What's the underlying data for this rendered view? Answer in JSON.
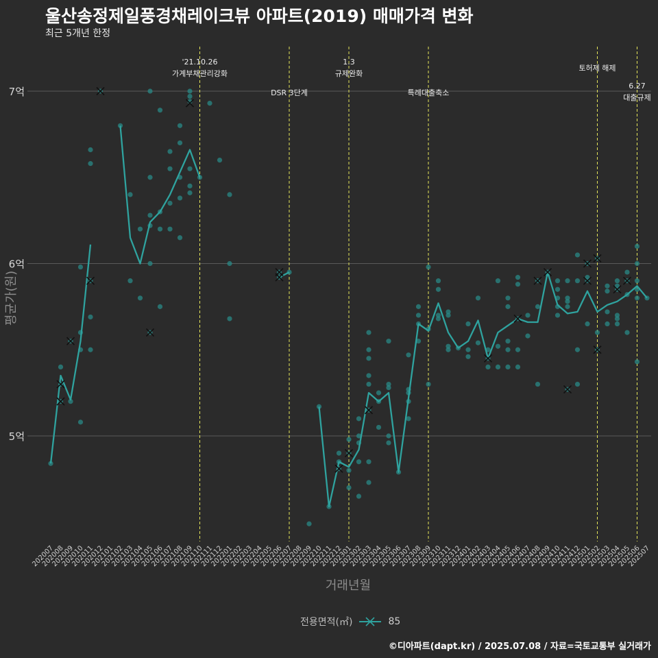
{
  "title": "울산송정제일풍경채레이크뷰 아파트(2019) 매매가격 변화",
  "subtitle": "최근 5개년 한정",
  "footer": "©디아파트(dapt.kr) / 2025.07.08 / 자료=국토교통부 실거래가",
  "legend": {
    "title": "전용면적(㎡)",
    "label": "85"
  },
  "colors": {
    "background": "#2b2b2b",
    "line": "#2fa39f",
    "point": "#2a8a87",
    "vline": "#e6e65a",
    "grid": "#5a5a5a"
  },
  "chart_data": {
    "type": "line",
    "xlabel": "거래년월",
    "ylabel": "평균가(원)",
    "ylim": [
      4.37,
      7.3
    ],
    "yticks": [
      5,
      6,
      7
    ],
    "ytick_labels": [
      "5억",
      "6억",
      "7억"
    ],
    "categories": [
      "202007",
      "202008",
      "202009",
      "202010",
      "202011",
      "202012",
      "202101",
      "202102",
      "202103",
      "202104",
      "202105",
      "202106",
      "202107",
      "202108",
      "202109",
      "202110",
      "202111",
      "202112",
      "202201",
      "202202",
      "202203",
      "202204",
      "202205",
      "202206",
      "202207",
      "202208",
      "202209",
      "202210",
      "202211",
      "202212",
      "202301",
      "202302",
      "202303",
      "202304",
      "202305",
      "202306",
      "202307",
      "202308",
      "202309",
      "202310",
      "202311",
      "202312",
      "202401",
      "202402",
      "202403",
      "202404",
      "202405",
      "202406",
      "202407",
      "202408",
      "202409",
      "202410",
      "202411",
      "202412",
      "202501",
      "202502",
      "202503",
      "202504",
      "202505",
      "202506",
      "202507"
    ],
    "series": [
      {
        "name": "85",
        "line_segments": [
          [
            [
              0,
              4.84
            ],
            [
              1,
              5.35
            ],
            [
              2,
              5.21
            ],
            [
              3,
              5.55
            ],
            [
              4,
              6.11
            ]
          ],
          [
            [
              7,
              6.8
            ],
            [
              8,
              6.15
            ],
            [
              9,
              6.0
            ],
            [
              10,
              6.24
            ],
            [
              11,
              6.3
            ],
            [
              12,
              6.4
            ],
            [
              13,
              6.53
            ],
            [
              14,
              6.66
            ],
            [
              15,
              6.5
            ]
          ],
          [
            [
              23,
              5.92
            ],
            [
              24,
              5.95
            ]
          ],
          [
            [
              27,
              5.17
            ],
            [
              28,
              4.59
            ],
            [
              29,
              4.85
            ],
            [
              30,
              4.82
            ],
            [
              31,
              4.92
            ],
            [
              32,
              5.25
            ],
            [
              33,
              5.2
            ],
            [
              34,
              5.25
            ],
            [
              35,
              4.79
            ],
            [
              36,
              5.22
            ],
            [
              37,
              5.65
            ],
            [
              38,
              5.61
            ],
            [
              39,
              5.77
            ],
            [
              40,
              5.6
            ],
            [
              41,
              5.51
            ],
            [
              42,
              5.55
            ],
            [
              43,
              5.67
            ],
            [
              44,
              5.45
            ],
            [
              45,
              5.6
            ],
            [
              46,
              5.64
            ],
            [
              47,
              5.68
            ],
            [
              48,
              5.66
            ],
            [
              49,
              5.66
            ],
            [
              50,
              5.95
            ],
            [
              51,
              5.76
            ],
            [
              52,
              5.71
            ],
            [
              53,
              5.72
            ],
            [
              54,
              5.84
            ],
            [
              55,
              5.72
            ],
            [
              56,
              5.76
            ],
            [
              57,
              5.78
            ],
            [
              58,
              5.82
            ],
            [
              59,
              5.87
            ],
            [
              60,
              5.8
            ]
          ]
        ],
        "points": [
          [
            0,
            4.84
          ],
          [
            1,
            5.4
          ],
          [
            1,
            5.3
          ],
          [
            1,
            5.2
          ],
          [
            2,
            5.55
          ],
          [
            2,
            5.2
          ],
          [
            3,
            5.98
          ],
          [
            3,
            5.6
          ],
          [
            3,
            5.5
          ],
          [
            3,
            5.08
          ],
          [
            4,
            6.66
          ],
          [
            4,
            6.58
          ],
          [
            4,
            5.9
          ],
          [
            4,
            5.69
          ],
          [
            4,
            5.5
          ],
          [
            5,
            7.0
          ],
          [
            7,
            6.8
          ],
          [
            8,
            6.4
          ],
          [
            8,
            5.9
          ],
          [
            9,
            6.2
          ],
          [
            9,
            5.8
          ],
          [
            10,
            7.0
          ],
          [
            10,
            6.5
          ],
          [
            10,
            6.28
          ],
          [
            10,
            6.22
          ],
          [
            10,
            6.0
          ],
          [
            10,
            5.6
          ],
          [
            11,
            6.89
          ],
          [
            11,
            6.3
          ],
          [
            11,
            6.2
          ],
          [
            11,
            5.75
          ],
          [
            12,
            6.65
          ],
          [
            12,
            6.55
          ],
          [
            12,
            6.35
          ],
          [
            12,
            6.2
          ],
          [
            13,
            6.8
          ],
          [
            13,
            6.7
          ],
          [
            13,
            6.5
          ],
          [
            13,
            6.38
          ],
          [
            13,
            6.15
          ],
          [
            14,
            7.0
          ],
          [
            14,
            6.97
          ],
          [
            14,
            6.94
          ],
          [
            14,
            6.55
          ],
          [
            14,
            6.45
          ],
          [
            14,
            6.41
          ],
          [
            15,
            6.5
          ],
          [
            16,
            6.93
          ],
          [
            17,
            6.6
          ],
          [
            18,
            6.4
          ],
          [
            18,
            6.0
          ],
          [
            18,
            5.68
          ],
          [
            23,
            5.95
          ],
          [
            23,
            5.92
          ],
          [
            24,
            5.95
          ],
          [
            26,
            4.49
          ],
          [
            27,
            5.17
          ],
          [
            28,
            4.59
          ],
          [
            29,
            4.9
          ],
          [
            29,
            4.85
          ],
          [
            29,
            4.81
          ],
          [
            30,
            4.98
          ],
          [
            30,
            4.9
          ],
          [
            30,
            4.8
          ],
          [
            30,
            4.7
          ],
          [
            31,
            5.1
          ],
          [
            31,
            5.0
          ],
          [
            31,
            4.96
          ],
          [
            31,
            4.85
          ],
          [
            31,
            4.65
          ],
          [
            32,
            5.6
          ],
          [
            32,
            5.5
          ],
          [
            32,
            5.45
          ],
          [
            32,
            5.35
          ],
          [
            32,
            5.3
          ],
          [
            32,
            5.15
          ],
          [
            32,
            4.85
          ],
          [
            32,
            4.73
          ],
          [
            33,
            5.25
          ],
          [
            33,
            5.2
          ],
          [
            33,
            5.05
          ],
          [
            34,
            5.55
          ],
          [
            34,
            5.3
          ],
          [
            34,
            5.28
          ],
          [
            34,
            5.0
          ],
          [
            34,
            4.96
          ],
          [
            35,
            4.79
          ],
          [
            36,
            5.47
          ],
          [
            36,
            5.27
          ],
          [
            36,
            5.25
          ],
          [
            36,
            5.2
          ],
          [
            36,
            5.1
          ],
          [
            37,
            5.75
          ],
          [
            37,
            5.7
          ],
          [
            37,
            5.65
          ],
          [
            37,
            5.55
          ],
          [
            38,
            5.98
          ],
          [
            38,
            5.62
          ],
          [
            38,
            5.3
          ],
          [
            39,
            5.9
          ],
          [
            39,
            5.85
          ],
          [
            39,
            5.7
          ],
          [
            39,
            5.68
          ],
          [
            40,
            5.72
          ],
          [
            40,
            5.7
          ],
          [
            40,
            5.52
          ],
          [
            40,
            5.5
          ],
          [
            41,
            5.51
          ],
          [
            42,
            5.65
          ],
          [
            42,
            5.5
          ],
          [
            42,
            5.46
          ],
          [
            43,
            5.8
          ],
          [
            43,
            5.54
          ],
          [
            44,
            5.5
          ],
          [
            44,
            5.45
          ],
          [
            44,
            5.4
          ],
          [
            45,
            5.9
          ],
          [
            45,
            5.52
          ],
          [
            45,
            5.4
          ],
          [
            46,
            5.8
          ],
          [
            46,
            5.75
          ],
          [
            46,
            5.55
          ],
          [
            46,
            5.5
          ],
          [
            46,
            5.4
          ],
          [
            47,
            5.92
          ],
          [
            47,
            5.88
          ],
          [
            47,
            5.68
          ],
          [
            47,
            5.5
          ],
          [
            47,
            5.4
          ],
          [
            48,
            5.7
          ],
          [
            48,
            5.58
          ],
          [
            49,
            5.9
          ],
          [
            49,
            5.75
          ],
          [
            49,
            5.3
          ],
          [
            50,
            5.95
          ],
          [
            50,
            5.94
          ],
          [
            51,
            5.9
          ],
          [
            51,
            5.85
          ],
          [
            51,
            5.8
          ],
          [
            51,
            5.75
          ],
          [
            51,
            5.7
          ],
          [
            52,
            5.9
          ],
          [
            52,
            5.8
          ],
          [
            52,
            5.78
          ],
          [
            52,
            5.75
          ],
          [
            52,
            5.27
          ],
          [
            53,
            6.05
          ],
          [
            53,
            5.9
          ],
          [
            53,
            5.5
          ],
          [
            53,
            5.3
          ],
          [
            54,
            6.0
          ],
          [
            54,
            5.92
          ],
          [
            54,
            5.9
          ],
          [
            54,
            5.65
          ],
          [
            55,
            6.03
          ],
          [
            55,
            5.6
          ],
          [
            55,
            5.5
          ],
          [
            56,
            5.87
          ],
          [
            56,
            5.84
          ],
          [
            56,
            5.72
          ],
          [
            56,
            5.65
          ],
          [
            57,
            5.9
          ],
          [
            57,
            5.87
          ],
          [
            57,
            5.85
          ],
          [
            57,
            5.7
          ],
          [
            57,
            5.68
          ],
          [
            57,
            5.65
          ],
          [
            58,
            5.95
          ],
          [
            58,
            5.9
          ],
          [
            58,
            5.82
          ],
          [
            58,
            5.6
          ],
          [
            59,
            6.1
          ],
          [
            59,
            6.0
          ],
          [
            59,
            5.9
          ],
          [
            59,
            5.85
          ],
          [
            59,
            5.8
          ],
          [
            59,
            5.43
          ],
          [
            60,
            5.8
          ]
        ],
        "x_markers": [
          [
            1,
            5.3
          ],
          [
            1,
            5.2
          ],
          [
            2,
            5.55
          ],
          [
            4,
            5.9
          ],
          [
            5,
            7.0
          ],
          [
            10,
            5.6
          ],
          [
            14,
            6.93
          ],
          [
            23,
            5.95
          ],
          [
            23,
            5.92
          ],
          [
            29,
            4.81
          ],
          [
            30,
            4.9
          ],
          [
            32,
            5.15
          ],
          [
            44,
            5.45
          ],
          [
            47,
            5.68
          ],
          [
            49,
            5.9
          ],
          [
            50,
            5.95
          ],
          [
            52,
            5.27
          ],
          [
            54,
            6.0
          ],
          [
            54,
            5.9
          ],
          [
            55,
            6.03
          ],
          [
            55,
            5.5
          ],
          [
            57,
            5.85
          ],
          [
            58,
            5.9
          ]
        ]
      }
    ],
    "vlines": [
      {
        "x": 15,
        "label_lines": [
          "'21.10.26",
          "가계부채관리강화"
        ],
        "label_pos": "top"
      },
      {
        "x": 24,
        "label_lines": [
          "DSR 3단계"
        ],
        "label_pos": "middle"
      },
      {
        "x": 30,
        "label_lines": [
          "1.3",
          "규제완화"
        ],
        "label_pos": "top"
      },
      {
        "x": 38,
        "label_lines": [
          "특례대출축소"
        ],
        "label_pos": "middle"
      },
      {
        "x": 55,
        "label_lines": [
          "토허제 해제"
        ],
        "label_pos": "upper"
      },
      {
        "x": 59,
        "label_lines": [
          "6.27",
          "대출규제"
        ],
        "label_pos": "lower"
      }
    ]
  }
}
